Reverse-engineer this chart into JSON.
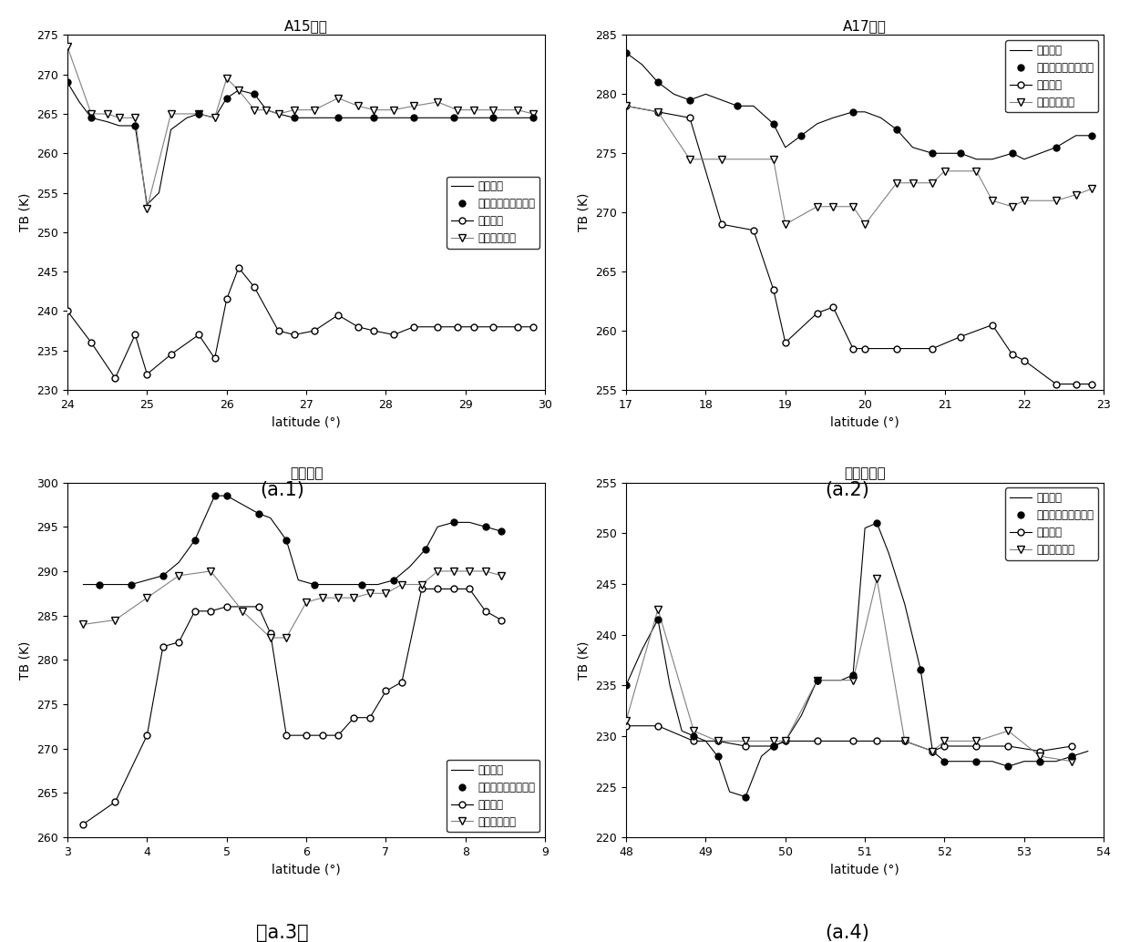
{
  "plots": [
    {
      "title": "A15地区",
      "xlabel": "latitude (°)",
      "ylabel": "TB (K)",
      "xlim": [
        24,
        30
      ],
      "ylim": [
        230,
        275
      ],
      "yticks": [
        230,
        235,
        240,
        245,
        250,
        255,
        260,
        265,
        270,
        275
      ],
      "xticks": [
        24,
        25,
        26,
        27,
        28,
        29,
        30
      ],
      "legend_loc": "center right",
      "label_pos": "(a.1)",
      "series": {
        "measured_line": {
          "x": [
            24.0,
            24.15,
            24.3,
            24.5,
            24.65,
            24.85,
            25.0,
            25.15,
            25.3,
            25.5,
            25.65,
            25.85,
            26.0,
            26.15,
            26.35,
            26.5,
            26.65,
            26.85,
            27.0,
            27.2,
            27.4,
            27.6,
            27.85,
            28.1,
            28.35,
            28.6,
            28.85,
            29.1,
            29.35,
            29.6,
            29.85
          ],
          "y": [
            269.0,
            266.5,
            264.5,
            264.0,
            263.5,
            263.5,
            253.5,
            255.0,
            263.0,
            264.5,
            265.0,
            264.5,
            267.0,
            268.0,
            267.5,
            265.5,
            265.0,
            264.5,
            264.5,
            264.5,
            264.5,
            264.5,
            264.5,
            264.5,
            264.5,
            264.5,
            264.5,
            264.5,
            264.5,
            264.5,
            264.5
          ]
        },
        "measured_dots": {
          "x": [
            24.0,
            24.3,
            24.85,
            25.65,
            26.0,
            26.35,
            26.85,
            27.4,
            27.85,
            28.35,
            28.85,
            29.35,
            29.85
          ],
          "y": [
            269.0,
            264.5,
            263.5,
            265.0,
            267.0,
            267.5,
            264.5,
            264.5,
            264.5,
            264.5,
            264.5,
            264.5,
            264.5
          ]
        },
        "original_model": {
          "x": [
            24.0,
            24.3,
            24.6,
            24.85,
            25.0,
            25.3,
            25.65,
            25.85,
            26.0,
            26.15,
            26.35,
            26.65,
            26.85,
            27.1,
            27.4,
            27.65,
            27.85,
            28.1,
            28.35,
            28.65,
            28.9,
            29.1,
            29.35,
            29.65,
            29.85
          ],
          "y": [
            240.0,
            236.0,
            231.5,
            237.0,
            232.0,
            234.5,
            237.0,
            234.0,
            241.5,
            245.5,
            243.0,
            237.5,
            237.0,
            237.5,
            239.5,
            238.0,
            237.5,
            237.0,
            238.0,
            238.0,
            238.0,
            238.0,
            238.0,
            238.0,
            238.0
          ]
        },
        "temp_seg_model": {
          "x": [
            24.0,
            24.3,
            24.5,
            24.65,
            24.85,
            25.0,
            25.3,
            25.65,
            25.85,
            26.0,
            26.15,
            26.35,
            26.5,
            26.65,
            26.85,
            27.1,
            27.4,
            27.65,
            27.85,
            28.1,
            28.35,
            28.65,
            28.9,
            29.1,
            29.35,
            29.65,
            29.85
          ],
          "y": [
            273.5,
            265.0,
            265.0,
            264.5,
            264.5,
            253.0,
            265.0,
            265.0,
            264.5,
            269.5,
            268.0,
            265.5,
            265.5,
            265.0,
            265.5,
            265.5,
            267.0,
            266.0,
            265.5,
            265.5,
            266.0,
            266.5,
            265.5,
            265.5,
            265.5,
            265.5,
            265.0
          ]
        }
      }
    },
    {
      "title": "A17地区",
      "xlabel": "latitude (°)",
      "ylabel": "TB (K)",
      "xlim": [
        17,
        23
      ],
      "ylim": [
        255,
        285
      ],
      "yticks": [
        255,
        260,
        265,
        270,
        275,
        280,
        285
      ],
      "xticks": [
        17,
        18,
        19,
        20,
        21,
        22,
        23
      ],
      "legend_loc": "upper right",
      "label_pos": "(a.2)",
      "series": {
        "measured_line": {
          "x": [
            17.0,
            17.2,
            17.4,
            17.6,
            17.8,
            18.0,
            18.2,
            18.4,
            18.6,
            18.85,
            19.0,
            19.2,
            19.4,
            19.6,
            19.85,
            20.0,
            20.2,
            20.4,
            20.6,
            20.85,
            21.0,
            21.2,
            21.4,
            21.6,
            21.85,
            22.0,
            22.2,
            22.4,
            22.65,
            22.85
          ],
          "y": [
            283.5,
            282.5,
            281.0,
            280.0,
            279.5,
            280.0,
            279.5,
            279.0,
            279.0,
            277.5,
            275.5,
            276.5,
            277.5,
            278.0,
            278.5,
            278.5,
            278.0,
            277.0,
            275.5,
            275.0,
            275.0,
            275.0,
            274.5,
            274.5,
            275.0,
            274.5,
            275.0,
            275.5,
            276.5,
            276.5
          ]
        },
        "measured_dots": {
          "x": [
            17.0,
            17.4,
            17.8,
            18.4,
            18.85,
            19.2,
            19.85,
            20.4,
            20.85,
            21.2,
            21.85,
            22.4,
            22.85
          ],
          "y": [
            283.5,
            281.0,
            279.5,
            279.0,
            277.5,
            276.5,
            278.5,
            277.0,
            275.0,
            275.0,
            275.0,
            275.5,
            276.5
          ]
        },
        "original_model": {
          "x": [
            17.0,
            17.4,
            17.8,
            18.2,
            18.6,
            18.85,
            19.0,
            19.4,
            19.6,
            19.85,
            20.0,
            20.4,
            20.85,
            21.2,
            21.6,
            21.85,
            22.0,
            22.4,
            22.65,
            22.85
          ],
          "y": [
            279.0,
            278.5,
            278.0,
            269.0,
            268.5,
            263.5,
            259.0,
            261.5,
            262.0,
            258.5,
            258.5,
            258.5,
            258.5,
            259.5,
            260.5,
            258.0,
            257.5,
            255.5,
            255.5,
            255.5
          ]
        },
        "temp_seg_model": {
          "x": [
            17.0,
            17.4,
            17.8,
            18.2,
            18.85,
            19.0,
            19.4,
            19.6,
            19.85,
            20.0,
            20.4,
            20.6,
            20.85,
            21.0,
            21.4,
            21.6,
            21.85,
            22.0,
            22.4,
            22.65,
            22.85
          ],
          "y": [
            279.0,
            278.5,
            274.5,
            274.5,
            274.5,
            269.0,
            270.5,
            270.5,
            270.5,
            269.0,
            272.5,
            272.5,
            272.5,
            273.5,
            273.5,
            271.0,
            270.5,
            271.0,
            271.0,
            271.5,
            272.0
          ]
        }
      }
    },
    {
      "title": "月海地区",
      "xlabel": "latitude (°)",
      "ylabel": "TB (K)",
      "xlim": [
        3,
        9
      ],
      "ylim": [
        260,
        300
      ],
      "yticks": [
        260,
        265,
        270,
        275,
        280,
        285,
        290,
        295,
        300
      ],
      "xticks": [
        3,
        4,
        5,
        6,
        7,
        8,
        9
      ],
      "legend_loc": "lower right",
      "label_pos": "（a.3）",
      "series": {
        "measured_line": {
          "x": [
            3.2,
            3.4,
            3.6,
            3.8,
            4.0,
            4.2,
            4.4,
            4.6,
            4.75,
            4.85,
            5.0,
            5.2,
            5.4,
            5.55,
            5.75,
            5.9,
            6.1,
            6.3,
            6.5,
            6.7,
            6.9,
            7.1,
            7.3,
            7.5,
            7.65,
            7.85,
            8.05,
            8.25,
            8.45
          ],
          "y": [
            288.5,
            288.5,
            288.5,
            288.5,
            289.0,
            289.5,
            291.0,
            293.5,
            296.5,
            298.5,
            298.5,
            297.5,
            296.5,
            296.0,
            293.5,
            289.0,
            288.5,
            288.5,
            288.5,
            288.5,
            288.5,
            289.0,
            290.5,
            292.5,
            295.0,
            295.5,
            295.5,
            295.0,
            294.5
          ]
        },
        "measured_dots": {
          "x": [
            3.4,
            3.8,
            4.2,
            4.6,
            4.85,
            5.0,
            5.4,
            5.75,
            6.1,
            6.7,
            7.1,
            7.5,
            7.85,
            8.25,
            8.45
          ],
          "y": [
            288.5,
            288.5,
            289.5,
            293.5,
            298.5,
            298.5,
            296.5,
            293.5,
            288.5,
            288.5,
            289.0,
            292.5,
            295.5,
            295.0,
            294.5
          ]
        },
        "original_model": {
          "x": [
            3.2,
            3.6,
            4.0,
            4.2,
            4.4,
            4.6,
            4.8,
            5.0,
            5.4,
            5.55,
            5.75,
            6.0,
            6.2,
            6.4,
            6.6,
            6.8,
            7.0,
            7.2,
            7.45,
            7.65,
            7.85,
            8.05,
            8.25,
            8.45
          ],
          "y": [
            261.5,
            264.0,
            271.5,
            281.5,
            282.0,
            285.5,
            285.5,
            286.0,
            286.0,
            283.0,
            271.5,
            271.5,
            271.5,
            271.5,
            273.5,
            273.5,
            276.5,
            277.5,
            288.0,
            288.0,
            288.0,
            288.0,
            285.5,
            284.5
          ]
        },
        "temp_seg_model": {
          "x": [
            3.2,
            3.6,
            4.0,
            4.4,
            4.8,
            5.2,
            5.55,
            5.75,
            6.0,
            6.2,
            6.4,
            6.6,
            6.8,
            7.0,
            7.2,
            7.45,
            7.65,
            7.85,
            8.05,
            8.25,
            8.45
          ],
          "y": [
            284.0,
            284.5,
            287.0,
            289.5,
            290.0,
            285.5,
            282.5,
            282.5,
            286.5,
            287.0,
            287.0,
            287.0,
            287.5,
            287.5,
            288.5,
            288.5,
            290.0,
            290.0,
            290.0,
            290.0,
            289.5
          ]
        }
      }
    },
    {
      "title": "撞击坑地区",
      "xlabel": "latitude (°)",
      "ylabel": "TB (K)",
      "xlim": [
        48,
        54
      ],
      "ylim": [
        220,
        255
      ],
      "yticks": [
        220,
        225,
        230,
        235,
        240,
        245,
        250,
        255
      ],
      "xticks": [
        48,
        49,
        50,
        51,
        52,
        53,
        54
      ],
      "legend_loc": "upper right",
      "label_pos": "(a.4)",
      "series": {
        "measured_line": {
          "x": [
            48.0,
            48.2,
            48.4,
            48.55,
            48.7,
            48.85,
            49.0,
            49.15,
            49.3,
            49.5,
            49.7,
            49.85,
            50.0,
            50.2,
            50.4,
            50.55,
            50.7,
            50.85,
            51.0,
            51.15,
            51.3,
            51.5,
            51.7,
            51.85,
            52.0,
            52.2,
            52.4,
            52.6,
            52.8,
            53.0,
            53.2,
            53.4,
            53.6,
            53.8
          ],
          "y": [
            235.0,
            238.5,
            241.5,
            235.0,
            230.5,
            230.0,
            229.5,
            228.0,
            224.5,
            224.0,
            228.0,
            229.0,
            229.5,
            232.0,
            235.5,
            235.5,
            235.5,
            236.0,
            250.5,
            251.0,
            248.0,
            243.0,
            236.5,
            228.5,
            227.5,
            227.5,
            227.5,
            227.5,
            227.0,
            227.5,
            227.5,
            227.5,
            228.0,
            228.5
          ]
        },
        "measured_dots": {
          "x": [
            48.0,
            48.4,
            48.85,
            49.15,
            49.5,
            49.85,
            50.4,
            50.85,
            51.15,
            51.7,
            52.0,
            52.4,
            52.8,
            53.2,
            53.6
          ],
          "y": [
            235.0,
            241.5,
            230.0,
            228.0,
            224.0,
            229.0,
            235.5,
            236.0,
            251.0,
            236.5,
            227.5,
            227.5,
            227.0,
            227.5,
            228.0
          ]
        },
        "original_model": {
          "x": [
            48.0,
            48.4,
            48.85,
            49.15,
            49.5,
            49.85,
            50.0,
            50.4,
            50.85,
            51.15,
            51.5,
            51.85,
            52.0,
            52.4,
            52.8,
            53.2,
            53.6
          ],
          "y": [
            231.0,
            231.0,
            229.5,
            229.5,
            229.0,
            229.0,
            229.5,
            229.5,
            229.5,
            229.5,
            229.5,
            228.5,
            229.0,
            229.0,
            229.0,
            228.5,
            229.0
          ]
        },
        "temp_seg_model": {
          "x": [
            48.0,
            48.4,
            48.85,
            49.15,
            49.5,
            49.85,
            50.0,
            50.4,
            50.85,
            51.15,
            51.5,
            51.85,
            52.0,
            52.4,
            52.8,
            53.2,
            53.6
          ],
          "y": [
            231.5,
            242.5,
            230.5,
            229.5,
            229.5,
            229.5,
            229.5,
            235.5,
            235.5,
            245.5,
            229.5,
            228.5,
            229.5,
            229.5,
            230.5,
            228.0,
            227.5
          ]
        }
      }
    }
  ],
  "legend_labels": [
    "实测亮温",
    "实测亮温中对应的点",
    "原有模型",
    "温度分段模型"
  ],
  "line_color": "#000000",
  "background_color": "#ffffff"
}
